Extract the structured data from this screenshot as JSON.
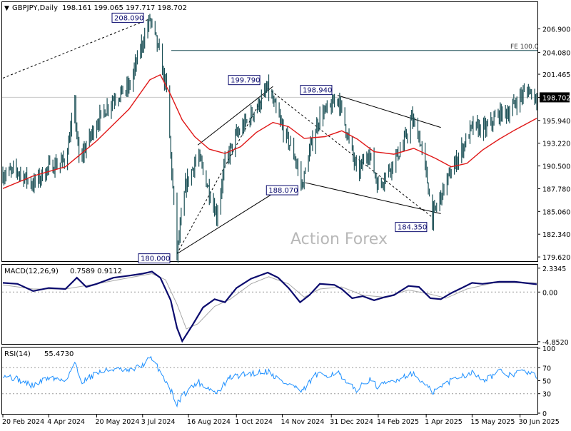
{
  "header": {
    "menu_arrow": "▼",
    "symbol_label": "GBPJPY,Daily",
    "ohlc": "198.161 199.065 197.717 198.702"
  },
  "watermark": "Action Forex",
  "colors": {
    "bar": "#1a4f55",
    "ma": "#e01818",
    "macd_line": "#0b0b6e",
    "signal_line": "#a8a8a8",
    "rsi_line": "#1e90ff",
    "trendline": "#000000",
    "box_border": "#0b0b6e",
    "box_text": "#0b0b6e",
    "grid_dot": "#9a9a9a",
    "price_box_bg": "#000000"
  },
  "chart_data": [
    {
      "type": "candlestick",
      "title": "GBPJPY,Daily",
      "x_axis_ticks": [
        "20 Feb 2024",
        "4 Apr 2024",
        "20 May 2024",
        "3 Jul 2024",
        "16 Aug 2024",
        "1 Oct 2024",
        "14 Nov 2024",
        "31 Dec 2024",
        "14 Feb 2025",
        "1 Apr 2025",
        "15 May 2025",
        "30 Jun 2025"
      ],
      "y_axis_ticks": [
        "206.900",
        "204.080",
        "201.465",
        "198.702",
        "195.940",
        "193.220",
        "190.500",
        "187.780",
        "185.060",
        "182.340",
        "179.620"
      ],
      "ylim": [
        179.2,
        210.0
      ],
      "last_price": "198.702",
      "annotations": [
        {
          "label": "208.090",
          "value": 208.09,
          "date": "2024-07-10"
        },
        {
          "label": "180.000",
          "value": 180.0,
          "date": "2024-08-05"
        },
        {
          "label": "199.790",
          "value": 199.79,
          "date": "2024-10-31"
        },
        {
          "label": "198.940",
          "value": 198.94,
          "date": "2025-01-06"
        },
        {
          "label": "188.070",
          "value": 188.07,
          "date": "2024-12-03"
        },
        {
          "label": "184.350",
          "value": 184.35,
          "date": "2025-04-07"
        },
        {
          "label": "FE 100.0",
          "value": 204.3
        }
      ],
      "price_path": [
        [
          "2024-02-20",
          189.5
        ],
        [
          "2024-03-05",
          189.9
        ],
        [
          "2024-03-20",
          188.3
        ],
        [
          "2024-04-04",
          190.3
        ],
        [
          "2024-04-20",
          191.2
        ],
        [
          "2024-04-29",
          197.5
        ],
        [
          "2024-05-03",
          191.0
        ],
        [
          "2024-05-20",
          195.7
        ],
        [
          "2024-06-05",
          198.6
        ],
        [
          "2024-06-20",
          199.9
        ],
        [
          "2024-07-03",
          205.3
        ],
        [
          "2024-07-10",
          208.09
        ],
        [
          "2024-07-17",
          205.0
        ],
        [
          "2024-07-26",
          199.6
        ],
        [
          "2024-08-05",
          180.0
        ],
        [
          "2024-08-13",
          188.0
        ],
        [
          "2024-08-25",
          191.8
        ],
        [
          "2024-09-05",
          187.5
        ],
        [
          "2024-09-12",
          184.6
        ],
        [
          "2024-09-20",
          190.8
        ],
        [
          "2024-10-01",
          194.1
        ],
        [
          "2024-10-12",
          196.0
        ],
        [
          "2024-10-23",
          198.0
        ],
        [
          "2024-10-31",
          199.79
        ],
        [
          "2024-11-14",
          195.0
        ],
        [
          "2024-11-25",
          192.0
        ],
        [
          "2024-12-03",
          188.07
        ],
        [
          "2024-12-10",
          192.2
        ],
        [
          "2024-12-20",
          196.5
        ],
        [
          "2024-12-31",
          197.5
        ],
        [
          "2025-01-06",
          198.94
        ],
        [
          "2025-01-14",
          195.0
        ],
        [
          "2025-01-25",
          189.5
        ],
        [
          "2025-02-05",
          192.3
        ],
        [
          "2025-02-14",
          188.0
        ],
        [
          "2025-02-25",
          190.3
        ],
        [
          "2025-03-10",
          193.0
        ],
        [
          "2025-03-18",
          196.1
        ],
        [
          "2025-03-25",
          194.2
        ],
        [
          "2025-04-01",
          189.5
        ],
        [
          "2025-04-07",
          184.35
        ],
        [
          "2025-04-20",
          188.5
        ],
        [
          "2025-05-01",
          191.4
        ],
        [
          "2025-05-15",
          195.1
        ],
        [
          "2025-05-28",
          194.9
        ],
        [
          "2025-06-10",
          196.7
        ],
        [
          "2025-06-20",
          197.0
        ],
        [
          "2025-06-30",
          198.8
        ],
        [
          "2025-07-08",
          199.6
        ],
        [
          "2025-07-16",
          198.7
        ]
      ],
      "moving_average": [
        [
          "2024-02-20",
          187.8
        ],
        [
          "2024-03-20",
          189.3
        ],
        [
          "2024-04-20",
          190.4
        ],
        [
          "2024-05-20",
          193.5
        ],
        [
          "2024-06-20",
          197.3
        ],
        [
          "2024-07-10",
          200.8
        ],
        [
          "2024-07-20",
          201.4
        ],
        [
          "2024-07-30",
          199.0
        ],
        [
          "2024-08-10",
          196.0
        ],
        [
          "2024-08-22",
          194.0
        ],
        [
          "2024-09-05",
          192.5
        ],
        [
          "2024-09-20",
          192.0
        ],
        [
          "2024-10-05",
          192.8
        ],
        [
          "2024-10-20",
          194.5
        ],
        [
          "2024-11-05",
          195.7
        ],
        [
          "2024-11-20",
          195.2
        ],
        [
          "2024-12-05",
          193.8
        ],
        [
          "2024-12-25",
          194.0
        ],
        [
          "2025-01-10",
          194.7
        ],
        [
          "2025-01-25",
          193.7
        ],
        [
          "2025-02-10",
          192.2
        ],
        [
          "2025-03-01",
          191.9
        ],
        [
          "2025-03-20",
          192.6
        ],
        [
          "2025-04-10",
          191.4
        ],
        [
          "2025-04-25",
          190.4
        ],
        [
          "2025-05-10",
          190.8
        ],
        [
          "2025-05-25",
          192.4
        ],
        [
          "2025-06-10",
          193.7
        ],
        [
          "2025-06-25",
          194.8
        ],
        [
          "2025-07-16",
          196.2
        ]
      ]
    },
    {
      "type": "line",
      "title": "MACD(12,26,9)",
      "values_label": "0.7589 0.9112",
      "y_axis_ticks": [
        "2.3345",
        "0.00",
        "-4.8520"
      ],
      "ylim": [
        -5.0,
        2.6
      ],
      "series": [
        {
          "name": "MACD",
          "values": [
            [
              "2024-02-20",
              0.9
            ],
            [
              "2024-03-05",
              0.8
            ],
            [
              "2024-03-20",
              0.1
            ],
            [
              "2024-04-04",
              0.4
            ],
            [
              "2024-04-20",
              0.3
            ],
            [
              "2024-05-01",
              1.4
            ],
            [
              "2024-05-10",
              0.5
            ],
            [
              "2024-05-20",
              0.8
            ],
            [
              "2024-06-05",
              1.4
            ],
            [
              "2024-06-20",
              1.6
            ],
            [
              "2024-07-03",
              1.8
            ],
            [
              "2024-07-12",
              2.0
            ],
            [
              "2024-07-20",
              1.4
            ],
            [
              "2024-07-30",
              -0.8
            ],
            [
              "2024-08-05",
              -3.5
            ],
            [
              "2024-08-10",
              -4.8
            ],
            [
              "2024-08-20",
              -3.2
            ],
            [
              "2024-08-30",
              -1.5
            ],
            [
              "2024-09-10",
              -0.7
            ],
            [
              "2024-09-20",
              -1.0
            ],
            [
              "2024-10-01",
              0.4
            ],
            [
              "2024-10-15",
              1.3
            ],
            [
              "2024-10-31",
              1.9
            ],
            [
              "2024-11-10",
              1.4
            ],
            [
              "2024-11-20",
              0.4
            ],
            [
              "2024-12-01",
              -1.0
            ],
            [
              "2024-12-10",
              -0.3
            ],
            [
              "2024-12-20",
              0.8
            ],
            [
              "2025-01-03",
              0.7
            ],
            [
              "2025-01-10",
              0.3
            ],
            [
              "2025-01-20",
              -0.6
            ],
            [
              "2025-01-30",
              -0.4
            ],
            [
              "2025-02-10",
              -0.8
            ],
            [
              "2025-02-20",
              -0.5
            ],
            [
              "2025-03-01",
              -0.3
            ],
            [
              "2025-03-15",
              0.6
            ],
            [
              "2025-03-25",
              0.5
            ],
            [
              "2025-04-05",
              -0.6
            ],
            [
              "2025-04-15",
              -0.7
            ],
            [
              "2025-04-25",
              -0.1
            ],
            [
              "2025-05-05",
              0.4
            ],
            [
              "2025-05-15",
              0.9
            ],
            [
              "2025-05-25",
              0.8
            ],
            [
              "2025-06-10",
              1.0
            ],
            [
              "2025-06-25",
              1.0
            ],
            [
              "2025-07-16",
              0.76
            ]
          ]
        },
        {
          "name": "Signal",
          "values": [
            [
              "2024-02-20",
              0.7
            ],
            [
              "2024-03-20",
              0.3
            ],
            [
              "2024-04-20",
              0.3
            ],
            [
              "2024-05-20",
              0.8
            ],
            [
              "2024-06-20",
              1.4
            ],
            [
              "2024-07-12",
              1.8
            ],
            [
              "2024-07-25",
              1.2
            ],
            [
              "2024-08-05",
              -1.2
            ],
            [
              "2024-08-14",
              -3.6
            ],
            [
              "2024-08-25",
              -3.1
            ],
            [
              "2024-09-10",
              -1.4
            ],
            [
              "2024-09-25",
              -0.7
            ],
            [
              "2024-10-15",
              0.8
            ],
            [
              "2024-11-01",
              1.5
            ],
            [
              "2024-11-20",
              0.8
            ],
            [
              "2024-12-05",
              -0.5
            ],
            [
              "2024-12-20",
              0.3
            ],
            [
              "2025-01-10",
              0.5
            ],
            [
              "2025-01-30",
              -0.3
            ],
            [
              "2025-02-20",
              -0.5
            ],
            [
              "2025-03-15",
              0.2
            ],
            [
              "2025-04-05",
              -0.2
            ],
            [
              "2025-04-20",
              -0.6
            ],
            [
              "2025-05-10",
              0.3
            ],
            [
              "2025-06-05",
              0.9
            ],
            [
              "2025-07-16",
              0.91
            ]
          ]
        }
      ]
    },
    {
      "type": "line",
      "title": "RSI(14)",
      "value_label": "55.4730",
      "y_axis_ticks": [
        "100",
        "70",
        "50",
        "30",
        "0"
      ],
      "ylim": [
        0,
        100
      ],
      "series": [
        {
          "name": "RSI",
          "values": [
            [
              "2024-02-20",
              60
            ],
            [
              "2024-03-05",
              52
            ],
            [
              "2024-03-20",
              42
            ],
            [
              "2024-04-04",
              55
            ],
            [
              "2024-04-20",
              50
            ],
            [
              "2024-04-29",
              78
            ],
            [
              "2024-05-05",
              48
            ],
            [
              "2024-05-20",
              62
            ],
            [
              "2024-06-05",
              68
            ],
            [
              "2024-06-20",
              64
            ],
            [
              "2024-07-03",
              74
            ],
            [
              "2024-07-10",
              85
            ],
            [
              "2024-07-17",
              72
            ],
            [
              "2024-07-28",
              42
            ],
            [
              "2024-08-05",
              15
            ],
            [
              "2024-08-12",
              30
            ],
            [
              "2024-08-25",
              48
            ],
            [
              "2024-09-05",
              38
            ],
            [
              "2024-09-12",
              30
            ],
            [
              "2024-09-25",
              55
            ],
            [
              "2024-10-10",
              60
            ],
            [
              "2024-10-31",
              65
            ],
            [
              "2024-11-14",
              48
            ],
            [
              "2024-11-25",
              42
            ],
            [
              "2024-12-03",
              32
            ],
            [
              "2024-12-15",
              58
            ],
            [
              "2024-12-31",
              60
            ],
            [
              "2025-01-06",
              64
            ],
            [
              "2025-01-14",
              45
            ],
            [
              "2025-01-25",
              36
            ],
            [
              "2025-02-05",
              52
            ],
            [
              "2025-02-14",
              40
            ],
            [
              "2025-02-25",
              48
            ],
            [
              "2025-03-10",
              56
            ],
            [
              "2025-03-18",
              62
            ],
            [
              "2025-03-28",
              48
            ],
            [
              "2025-04-07",
              32
            ],
            [
              "2025-04-20",
              46
            ],
            [
              "2025-05-01",
              56
            ],
            [
              "2025-05-15",
              62
            ],
            [
              "2025-05-28",
              52
            ],
            [
              "2025-06-10",
              64
            ],
            [
              "2025-06-20",
              58
            ],
            [
              "2025-06-30",
              65
            ],
            [
              "2025-07-08",
              62
            ],
            [
              "2025-07-16",
              55.5
            ]
          ]
        }
      ]
    }
  ]
}
